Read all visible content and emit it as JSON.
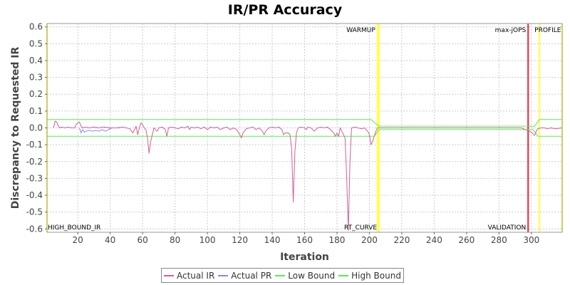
{
  "colors": {
    "actual_ir": "#d0609b",
    "actual_pr": "#8c84ee",
    "low_bound": "#55ee55",
    "high_bound": "#55ee55",
    "marker_yellow": "#ffff44",
    "marker_red": "#e8384a",
    "grid": "#cccccc",
    "plot_bg": "#ffffff"
  },
  "chart_data": {
    "type": "line",
    "title": "IR/PR Accuracy",
    "xlabel": "Iteration",
    "ylabel": "Discrepancy to Requested IR",
    "xlim": [
      1,
      319
    ],
    "ylim": [
      -0.62,
      0.62
    ],
    "grid": true,
    "legend_position": "bottom",
    "x_ticks": [
      20,
      40,
      60,
      80,
      100,
      120,
      140,
      160,
      180,
      200,
      220,
      240,
      260,
      280,
      300
    ],
    "x_tick_labels": [
      "20",
      "40",
      "60",
      "80",
      "100",
      "120",
      "140",
      "160",
      "180",
      "200",
      "220",
      "240",
      "260",
      "280",
      "300"
    ],
    "y_ticks": [
      0.6,
      0.5,
      0.4,
      0.3,
      0.2,
      0.1,
      0.0,
      -0.1,
      -0.2,
      -0.3,
      -0.4,
      -0.5,
      -0.6
    ],
    "y_tick_labels": [
      "0.6",
      "0.5",
      "0.4",
      "0.3",
      "0.2",
      "0.1",
      "0.0",
      "-0.1",
      "-0.2",
      "-0.3",
      "-0.4",
      "-0.5",
      "-0.6"
    ],
    "markers": [
      {
        "label": "HIGH_BOUND_IR",
        "x": 1,
        "color": "yellow",
        "label_pos": "bottom"
      },
      {
        "label": "WARMUP",
        "x": 205,
        "color": "yellow",
        "label_pos": "top"
      },
      {
        "label": "RT_CURVE",
        "x": 206,
        "color": "yellow",
        "label_pos": "bottom"
      },
      {
        "label": "max-jOPS",
        "x": 298,
        "color": "red",
        "label_pos": "top"
      },
      {
        "label": "VALIDATION",
        "x": 298,
        "color": "red",
        "label_pos": "bottom"
      },
      {
        "label": "PROFILE",
        "x": 305,
        "color": "yellow",
        "label_pos": "top"
      },
      {
        "label": "",
        "x": 319,
        "color": "yellow",
        "label_pos": "none"
      }
    ],
    "series": [
      {
        "name": "Actual IR",
        "color_key": "actual_ir",
        "points": [
          [
            5,
            0.0
          ],
          [
            6,
            0.04
          ],
          [
            7,
            0.035
          ],
          [
            8,
            0.01
          ],
          [
            9,
            0.0
          ],
          [
            10,
            0.005
          ],
          [
            12,
            0.0
          ],
          [
            14,
            0.005
          ],
          [
            16,
            0.0
          ],
          [
            18,
            0.0
          ],
          [
            19,
            0.02
          ],
          [
            20,
            0.03
          ],
          [
            21,
            0.035
          ],
          [
            22,
            0.01
          ],
          [
            23,
            0.0
          ],
          [
            25,
            0.005
          ],
          [
            27,
            0.0
          ],
          [
            30,
            0.005
          ],
          [
            33,
            0.0
          ],
          [
            36,
            0.005
          ],
          [
            40,
            0.0
          ],
          [
            44,
            0.0
          ],
          [
            48,
            0.005
          ],
          [
            52,
            -0.005
          ],
          [
            54,
            -0.03
          ],
          [
            55,
            -0.01
          ],
          [
            56,
            0.01
          ],
          [
            57,
            -0.04
          ],
          [
            58,
            0.0
          ],
          [
            59,
            0.03
          ],
          [
            60,
            0.02
          ],
          [
            61,
            0.0
          ],
          [
            62,
            -0.01
          ],
          [
            63,
            -0.06
          ],
          [
            64,
            -0.15
          ],
          [
            65,
            -0.08
          ],
          [
            66,
            -0.04
          ],
          [
            67,
            0.0
          ],
          [
            68,
            -0.01
          ],
          [
            69,
            -0.02
          ],
          [
            70,
            0.0
          ],
          [
            72,
            0.005
          ],
          [
            74,
            -0.01
          ],
          [
            75,
            -0.05
          ],
          [
            76,
            0.0
          ],
          [
            78,
            0.005
          ],
          [
            80,
            0.0
          ],
          [
            82,
            -0.005
          ],
          [
            84,
            0.005
          ],
          [
            86,
            0.0
          ],
          [
            88,
            0.01
          ],
          [
            89,
            -0.01
          ],
          [
            90,
            0.005
          ],
          [
            92,
            0.0
          ],
          [
            94,
            0.005
          ],
          [
            96,
            -0.005
          ],
          [
            98,
            0.005
          ],
          [
            100,
            -0.01
          ],
          [
            102,
            0.005
          ],
          [
            104,
            0.0
          ],
          [
            106,
            0.005
          ],
          [
            108,
            -0.01
          ],
          [
            110,
            0.0
          ],
          [
            112,
            0.005
          ],
          [
            114,
            -0.01
          ],
          [
            116,
            0.0
          ],
          [
            118,
            -0.01
          ],
          [
            120,
            -0.04
          ],
          [
            121,
            -0.06
          ],
          [
            122,
            -0.03
          ],
          [
            124,
            -0.005
          ],
          [
            126,
            0.0
          ],
          [
            128,
            0.005
          ],
          [
            130,
            -0.01
          ],
          [
            132,
            0.0
          ],
          [
            134,
            -0.02
          ],
          [
            135,
            -0.04
          ],
          [
            136,
            -0.02
          ],
          [
            138,
            0.0
          ],
          [
            140,
            0.005
          ],
          [
            142,
            0.0
          ],
          [
            144,
            0.005
          ],
          [
            146,
            -0.01
          ],
          [
            147,
            -0.04
          ],
          [
            148,
            -0.03
          ],
          [
            150,
            -0.03
          ],
          [
            151,
            -0.04
          ],
          [
            152,
            -0.12
          ],
          [
            153,
            -0.44
          ],
          [
            154,
            -0.14
          ],
          [
            155,
            -0.03
          ],
          [
            156,
            0.0
          ],
          [
            158,
            0.005
          ],
          [
            160,
            0.0
          ],
          [
            161,
            -0.01
          ],
          [
            162,
            0.005
          ],
          [
            164,
            0.0
          ],
          [
            166,
            -0.02
          ],
          [
            168,
            0.0
          ],
          [
            170,
            0.005
          ],
          [
            172,
            0.0
          ],
          [
            174,
            0.005
          ],
          [
            176,
            -0.01
          ],
          [
            178,
            -0.03
          ],
          [
            179,
            -0.05
          ],
          [
            180,
            -0.03
          ],
          [
            181,
            -0.05
          ],
          [
            182,
            0.0
          ],
          [
            183,
            -0.02
          ],
          [
            184,
            -0.04
          ],
          [
            185,
            -0.06
          ],
          [
            186,
            -0.3
          ],
          [
            187,
            -0.61
          ],
          [
            188,
            -0.2
          ],
          [
            189,
            0.0
          ],
          [
            191,
            0.005
          ],
          [
            193,
            0.0
          ],
          [
            195,
            -0.005
          ],
          [
            197,
            0.0
          ],
          [
            198,
            -0.01
          ],
          [
            199,
            -0.02
          ],
          [
            200,
            -0.04
          ],
          [
            201,
            -0.1
          ],
          [
            202,
            -0.08
          ],
          [
            203,
            -0.05
          ],
          [
            204,
            -0.02
          ],
          [
            205,
            0.0
          ],
          [
            215,
            0.0
          ],
          [
            230,
            0.0
          ],
          [
            250,
            0.0
          ],
          [
            270,
            0.0
          ],
          [
            285,
            0.0
          ],
          [
            294,
            0.0
          ],
          [
            296,
            -0.01
          ],
          [
            298,
            -0.015
          ],
          [
            300,
            -0.025
          ],
          [
            301,
            -0.035
          ],
          [
            302,
            -0.045
          ],
          [
            303,
            -0.02
          ],
          [
            304,
            -0.005
          ],
          [
            306,
            0.0
          ],
          [
            308,
            0.0
          ],
          [
            310,
            -0.005
          ],
          [
            312,
            0.0
          ],
          [
            315,
            -0.005
          ],
          [
            319,
            0.0
          ]
        ]
      },
      {
        "name": "Actual PR",
        "color_key": "actual_pr",
        "points": [
          [
            21,
            0.0
          ],
          [
            22,
            -0.03
          ],
          [
            23,
            -0.01
          ],
          [
            24,
            -0.025
          ],
          [
            25,
            -0.02
          ],
          [
            27,
            -0.015
          ],
          [
            29,
            -0.02
          ],
          [
            31,
            -0.015
          ],
          [
            33,
            -0.02
          ],
          [
            35,
            -0.01
          ],
          [
            37,
            -0.02
          ],
          [
            39,
            -0.01
          ],
          [
            41,
            0.0
          ],
          [
            43,
            0.0
          ],
          [
            46,
            0.0
          ]
        ]
      },
      {
        "name": "Low Bound",
        "color_key": "low_bound",
        "points": [
          [
            1,
            -0.05
          ],
          [
            203,
            -0.05
          ],
          [
            206,
            -0.01
          ],
          [
            301,
            -0.01
          ],
          [
            304,
            -0.05
          ],
          [
            319,
            -0.05
          ]
        ]
      },
      {
        "name": "High Bound",
        "color_key": "high_bound",
        "points": [
          [
            1,
            0.05
          ],
          [
            201,
            0.05
          ],
          [
            206,
            0.01
          ],
          [
            302,
            0.01
          ],
          [
            305,
            0.05
          ],
          [
            319,
            0.05
          ]
        ]
      }
    ]
  },
  "legend": {
    "items": [
      {
        "label": "Actual IR",
        "color_key": "actual_ir"
      },
      {
        "label": "Actual PR",
        "color_key": "actual_pr"
      },
      {
        "label": "Low Bound",
        "color_key": "low_bound"
      },
      {
        "label": "High Bound",
        "color_key": "high_bound"
      }
    ]
  }
}
